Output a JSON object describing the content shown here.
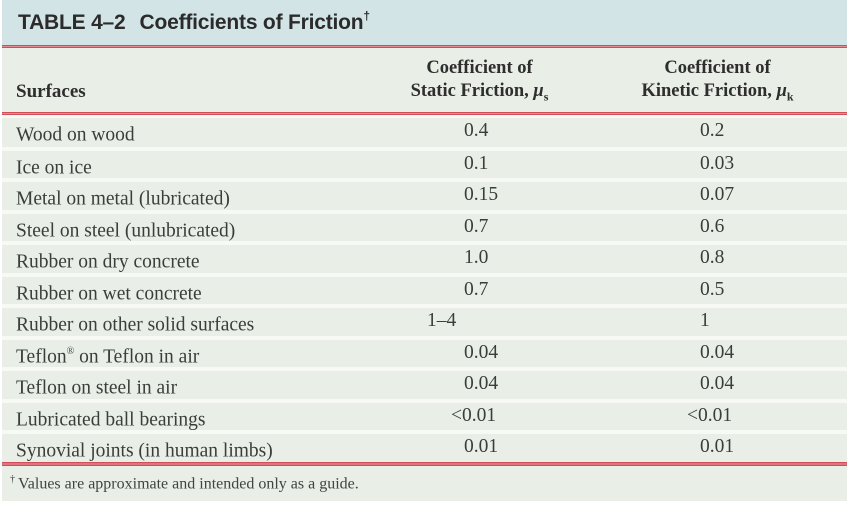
{
  "table": {
    "title_num": "TABLE 4–2",
    "title_text": "Coefficients of Friction",
    "title_dagger": "†",
    "header": {
      "surfaces": "Surfaces",
      "static": {
        "line1": "Coefficient of",
        "line2": "Static Friction,",
        "mu": "μ",
        "sub": "s"
      },
      "kinetic": {
        "line1": "Coefficient of",
        "line2": "Kinetic Friction,",
        "mu": "μ",
        "sub": "k"
      }
    },
    "rows": [
      {
        "surface": "Wood on wood",
        "static": "0.4",
        "kinetic": "0.2"
      },
      {
        "surface": "Ice on ice",
        "static": "0.1",
        "kinetic": "0.03"
      },
      {
        "surface": "Metal on metal (lubricated)",
        "static": "0.15",
        "kinetic": "0.07"
      },
      {
        "surface": "Steel on steel (unlubricated)",
        "static": "0.7",
        "kinetic": "0.6"
      },
      {
        "surface": "Rubber on dry concrete",
        "static": "1.0",
        "kinetic": "0.8"
      },
      {
        "surface": "Rubber on wet concrete",
        "static": "0.7",
        "kinetic": "0.5"
      },
      {
        "surface": "Rubber on other solid surfaces",
        "static": "1–4",
        "kinetic": "1"
      },
      {
        "surface": "Teflon",
        "surface_sup": "®",
        "surface_rest": " on Teflon in air",
        "static": "0.04",
        "kinetic": "0.04"
      },
      {
        "surface": "Teflon on steel in air",
        "static": "0.04",
        "kinetic": "0.04"
      },
      {
        "surface": "Lubricated ball bearings",
        "static": "<0.01",
        "kinetic": "<0.01"
      },
      {
        "surface": "Synovial joints (in human limbs)",
        "static": "0.01",
        "kinetic": "0.01"
      }
    ],
    "footnote_dagger": "†",
    "footnote_text": "Values are approximate and intended only as a guide.",
    "colors": {
      "title_bar": "#d3e4e6",
      "body_band": "#e9efe7",
      "row_gap": "#f7f9f4",
      "rule_red": "#cf4e59"
    }
  }
}
